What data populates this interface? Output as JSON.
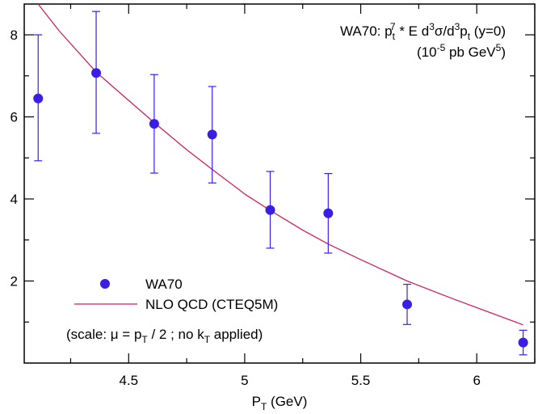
{
  "chart_data": {
    "type": "scatter",
    "title_line1": {
      "main": "WA70:  p",
      "sub1": "t",
      "sup1": "7",
      "mid1": " * E d",
      "sup2": "3",
      "mid2": "σ/d",
      "sup3": "3",
      "mid3": "p",
      "sub2": "t",
      "end": " (y=0)"
    },
    "title_line2": {
      "start": "(10",
      "sup1": "-5",
      "mid": " pb GeV",
      "sup2": "5",
      "end": ")"
    },
    "xlabel": {
      "main": "P",
      "sub": "T",
      "end": " (GeV)"
    },
    "ylabel": "",
    "xlim": [
      4.05,
      6.25
    ],
    "ylim": [
      0,
      8.75
    ],
    "xticks": [
      "4.5",
      "5",
      "5.5",
      "6"
    ],
    "xtick_values": [
      4.5,
      5,
      5.5,
      6
    ],
    "yticks": [
      "2",
      "4",
      "6",
      "8"
    ],
    "ytick_values": [
      2,
      4,
      6,
      8
    ],
    "x_minor_step": 0.25,
    "y_minor_step": 1,
    "grid": false,
    "legend_position": "bottom-left",
    "series": [
      {
        "name": "WA70",
        "kind": "points",
        "color": "#3a1ee6",
        "x": [
          4.11,
          4.36,
          4.61,
          4.86,
          5.11,
          5.36,
          5.7,
          6.2
        ],
        "y": [
          6.45,
          7.07,
          5.83,
          5.57,
          3.73,
          3.65,
          1.43,
          0.5
        ],
        "err_low": [
          1.52,
          1.47,
          1.2,
          1.18,
          0.93,
          0.97,
          0.49,
          0.3
        ],
        "err_high": [
          1.55,
          1.5,
          1.2,
          1.17,
          0.94,
          0.97,
          0.49,
          0.3
        ]
      },
      {
        "name": "NLO QCD (CTEQ5M)",
        "kind": "line",
        "color": "#d0205a",
        "x": [
          4.11,
          4.2,
          4.36,
          4.5,
          4.61,
          4.75,
          4.86,
          5.0,
          5.11,
          5.25,
          5.36,
          5.5,
          5.7,
          5.9,
          6.2
        ],
        "y": [
          8.75,
          8.1,
          7.09,
          6.4,
          5.86,
          5.2,
          4.72,
          4.12,
          3.72,
          3.24,
          2.9,
          2.52,
          2.0,
          1.56,
          0.93
        ]
      }
    ],
    "annotation": {
      "start": "(scale: μ = p",
      "sub1": "T",
      "mid": " / 2 ;  no k",
      "sub2": "T",
      "end": " applied)"
    }
  }
}
